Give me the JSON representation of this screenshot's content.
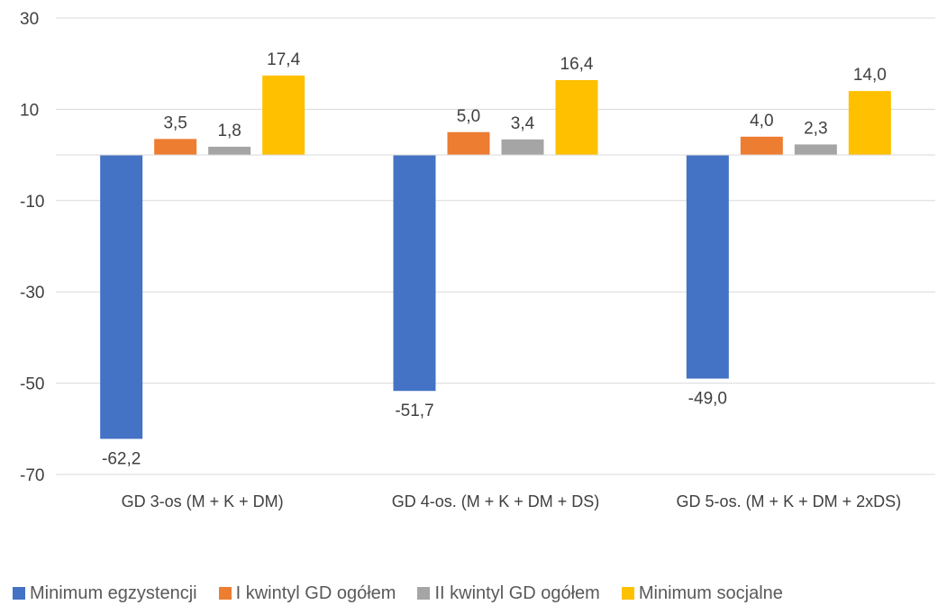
{
  "chart_data": {
    "type": "bar",
    "title": "",
    "xlabel": "",
    "ylabel": "",
    "ylim": [
      -70,
      30
    ],
    "yticks": [
      30,
      10,
      -10,
      -30,
      -50,
      -70
    ],
    "grid": true,
    "legend_position": "bottom",
    "categories": [
      "GD 3-os (M + K + DM)",
      "GD 4-os. (M + K + DM + DS)",
      "GD 5-os. (M + K + DM + 2xDS)"
    ],
    "series": [
      {
        "name": "Minimum egzystencji",
        "color": "#4472C4",
        "values": [
          -62.2,
          -51.7,
          -49.0
        ],
        "labels": [
          "-62,2",
          "-51,7",
          "-49,0"
        ]
      },
      {
        "name": "I kwintyl GD ogółem",
        "color": "#ED7D31",
        "values": [
          3.5,
          5.0,
          4.0
        ],
        "labels": [
          "3,5",
          "5,0",
          "4,0"
        ]
      },
      {
        "name": "II kwintyl GD ogółem",
        "color": "#A5A5A5",
        "values": [
          1.8,
          3.4,
          2.3
        ],
        "labels": [
          "1,8",
          "3,4",
          "2,3"
        ]
      },
      {
        "name": "Minimum socjalne",
        "color": "#FFC000",
        "values": [
          17.4,
          16.4,
          14.0
        ],
        "labels": [
          "17,4",
          "16,4",
          "14,0"
        ]
      }
    ]
  }
}
